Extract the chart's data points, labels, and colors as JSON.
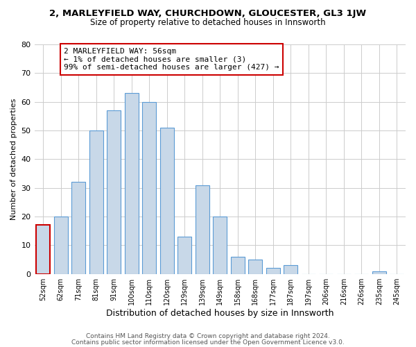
{
  "title": "2, MARLEYFIELD WAY, CHURCHDOWN, GLOUCESTER, GL3 1JW",
  "subtitle": "Size of property relative to detached houses in Innsworth",
  "xlabel": "Distribution of detached houses by size in Innsworth",
  "ylabel": "Number of detached properties",
  "categories": [
    "52sqm",
    "62sqm",
    "71sqm",
    "81sqm",
    "91sqm",
    "100sqm",
    "110sqm",
    "120sqm",
    "129sqm",
    "139sqm",
    "149sqm",
    "158sqm",
    "168sqm",
    "177sqm",
    "187sqm",
    "197sqm",
    "206sqm",
    "216sqm",
    "226sqm",
    "235sqm",
    "245sqm"
  ],
  "values": [
    17,
    20,
    32,
    50,
    57,
    63,
    60,
    51,
    13,
    31,
    20,
    6,
    5,
    2,
    3,
    0,
    0,
    0,
    0,
    1,
    0
  ],
  "bar_color": "#c8d8e8",
  "bar_edge_color": "#5b9bd5",
  "highlight_bar_index": 0,
  "highlight_edge_color": "#cc0000",
  "ylim": [
    0,
    80
  ],
  "yticks": [
    0,
    10,
    20,
    30,
    40,
    50,
    60,
    70,
    80
  ],
  "annotation_title": "2 MARLEYFIELD WAY: 56sqm",
  "annotation_line1": "← 1% of detached houses are smaller (3)",
  "annotation_line2": "99% of semi-detached houses are larger (427) →",
  "annotation_box_edge": "#cc0000",
  "footer_line1": "Contains HM Land Registry data © Crown copyright and database right 2024.",
  "footer_line2": "Contains public sector information licensed under the Open Government Licence v3.0.",
  "background_color": "#ffffff",
  "grid_color": "#cccccc"
}
